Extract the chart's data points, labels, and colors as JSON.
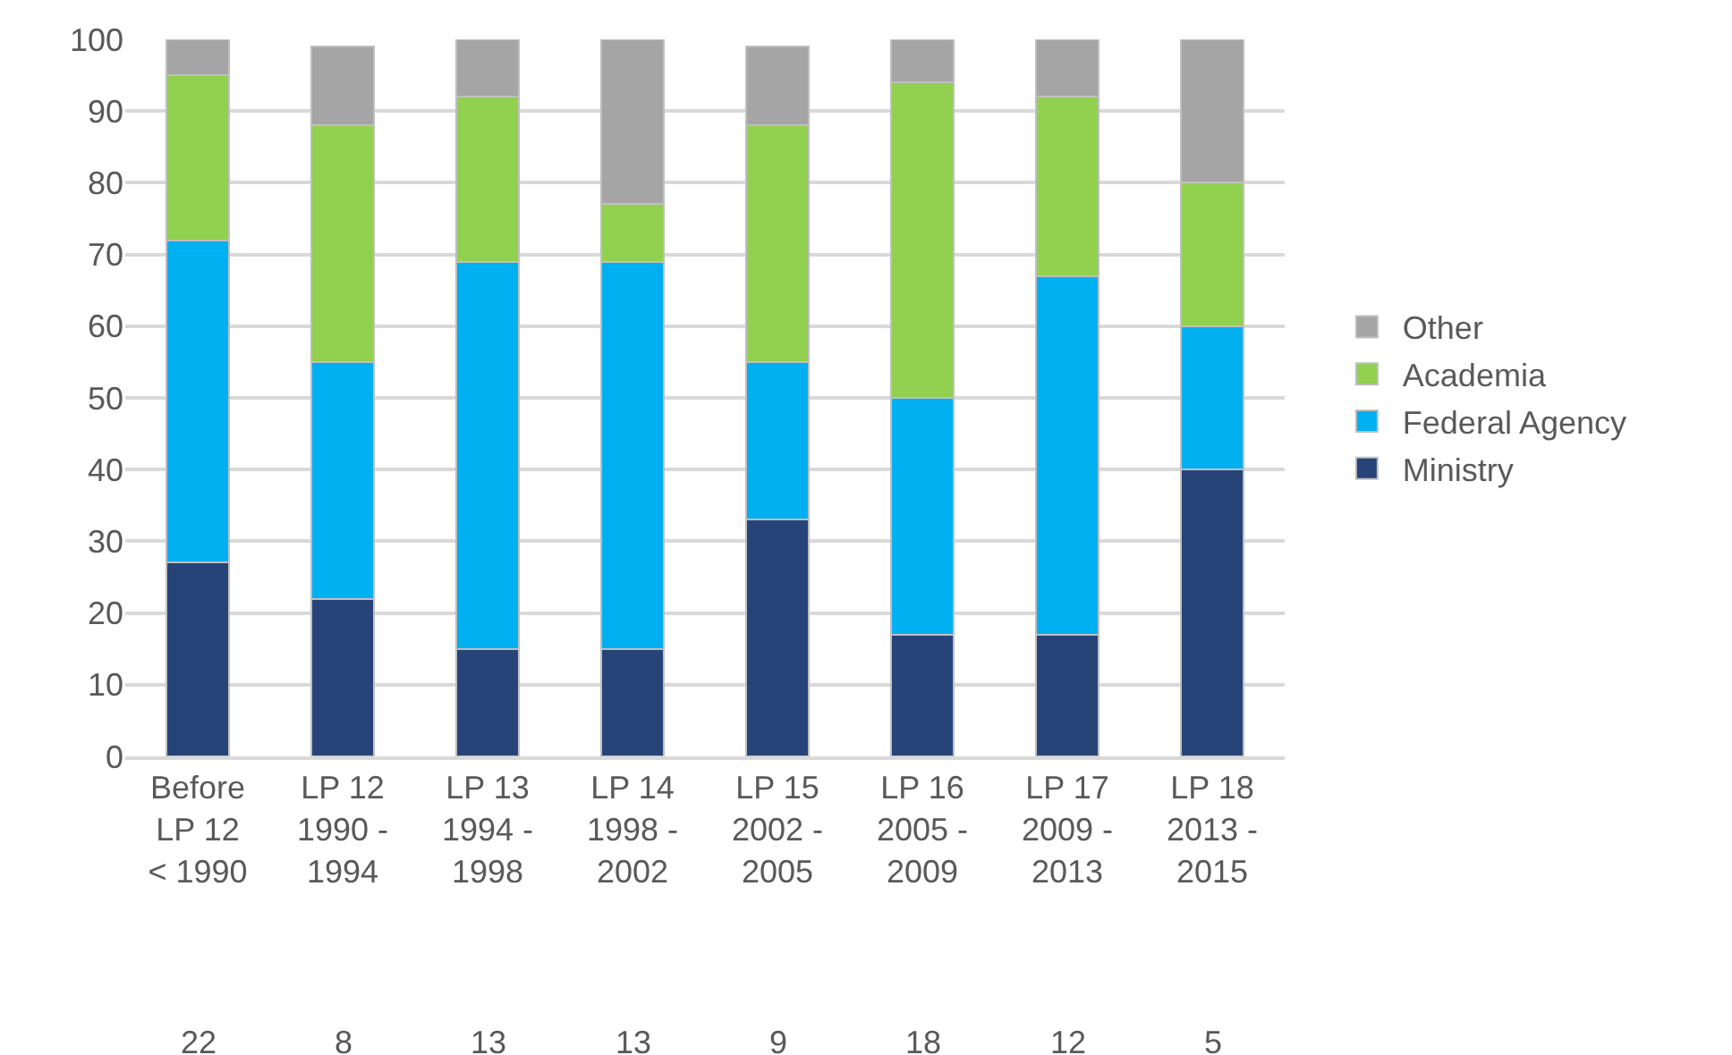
{
  "chart_data": {
    "type": "bar",
    "stacked": true,
    "categories": [
      "Before\nLP 12\n< 1990",
      "LP 12\n1990 -\n1994",
      "LP 13\n1994 -\n1998",
      "LP 14\n1998 -\n2002",
      "LP 15\n2002 -\n2005",
      "LP 16\n2005 -\n2009",
      "LP 17\n2009 -\n2013",
      "LP 18\n2013 -\n2015"
    ],
    "series": [
      {
        "name": "Ministry",
        "color": "#264478",
        "values": [
          27,
          22,
          15,
          15,
          33,
          17,
          17,
          40
        ]
      },
      {
        "name": "Federal Agency",
        "color": "#00b0f0",
        "values": [
          45,
          33,
          54,
          54,
          22,
          33,
          50,
          20
        ]
      },
      {
        "name": "Academia",
        "color": "#92d050",
        "values": [
          23,
          33,
          23,
          8,
          33,
          44,
          25,
          20
        ]
      },
      {
        "name": "Other",
        "color": "#a5a5a5",
        "values": [
          5,
          11,
          8,
          23,
          11,
          6,
          8,
          20
        ]
      }
    ],
    "ylim": [
      0,
      100
    ],
    "yticks": [
      0,
      10,
      20,
      30,
      40,
      50,
      60,
      70,
      80,
      90,
      100
    ],
    "grid": "y",
    "legend": "right",
    "annotations": [
      "22",
      "8",
      "13",
      "13",
      "9",
      "18",
      "12",
      "5"
    ]
  }
}
